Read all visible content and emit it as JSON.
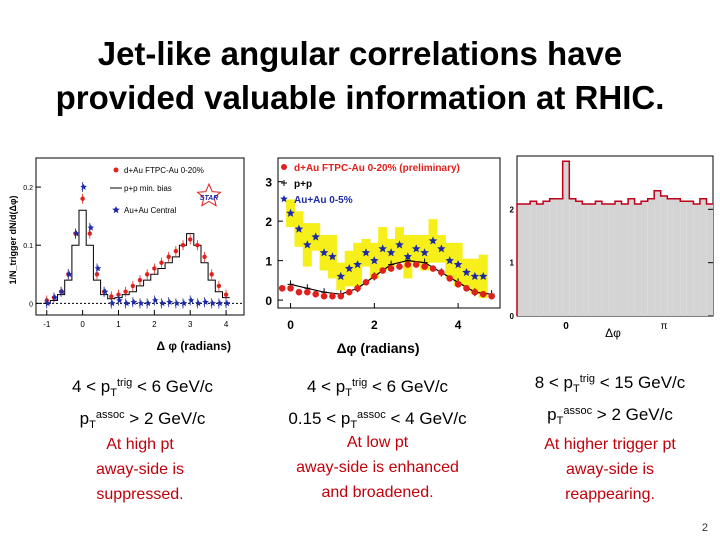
{
  "slide": {
    "title_line1": "Jet-like angular correlations have",
    "title_line2": "provided valuable information at RHIC.",
    "page_number": "2"
  },
  "colors": {
    "red": "#e0201c",
    "blue": "#1c2aa8",
    "yellow": "#f7ef1a",
    "note_red": "#c0000a",
    "gray_fill": "#d4d4d4"
  },
  "captions": [
    {
      "p1": "4 < p",
      "sub1": "T",
      "sup1": "trig",
      "p1b": " < 6 GeV/c",
      "p2": "p",
      "sub2": "T",
      "sup2": "assoc",
      "p2b": " > 2 GeV/c",
      "note1": "At high pt",
      "note2": "away-side is",
      "note3": "suppressed."
    },
    {
      "p1": "4 < p",
      "sub1": "T",
      "sup1": "trig",
      "p1b": " < 6 GeV/c",
      "p2": "0.15 < p",
      "sub2": "T",
      "sup2": "assoc",
      "p2b": " < 4 GeV/c",
      "note1": "At low pt",
      "note2": "away-side is enhanced",
      "note3": "and broadened."
    },
    {
      "p1": "8 < p",
      "sub1": "T",
      "sup1": "trig",
      "p1b": " < 15 GeV/c",
      "p2": "p",
      "sub2": "T",
      "sup2": "assoc",
      "p2b": " > 2 GeV/c",
      "note1": "At higher trigger pt",
      "note2": "away-side is",
      "note3": "reappearing."
    }
  ],
  "chart_data": [
    {
      "type": "scatter",
      "title": "",
      "xlabel": "Δ φ (radians)",
      "ylabel": "1/N_trigger dN/d(Δφ)",
      "xlim": [
        -1.3,
        4.5
      ],
      "ylim": [
        -0.02,
        0.25
      ],
      "x_ticks": [
        "-1",
        "0",
        "1",
        "2",
        "3",
        "4"
      ],
      "y_ticks": [
        "0",
        "0.1",
        "0.2"
      ],
      "logo": "STAR",
      "legend": [
        "d+Au FTPC-Au 0-20%",
        "p+p min. bias",
        "Au+Au Central"
      ],
      "series": [
        {
          "name": "d+Au FTPC-Au 0-20%",
          "x": [
            -1.0,
            -0.8,
            -0.6,
            -0.4,
            -0.2,
            0.0,
            0.2,
            0.4,
            0.6,
            0.8,
            1.0,
            1.2,
            1.4,
            1.6,
            1.8,
            2.0,
            2.2,
            2.4,
            2.6,
            2.8,
            3.0,
            3.2,
            3.4,
            3.6,
            3.8,
            4.0
          ],
          "y": [
            0.005,
            0.01,
            0.02,
            0.05,
            0.12,
            0.18,
            0.12,
            0.05,
            0.02,
            0.012,
            0.015,
            0.02,
            0.03,
            0.04,
            0.05,
            0.06,
            0.07,
            0.08,
            0.09,
            0.1,
            0.11,
            0.1,
            0.08,
            0.05,
            0.03,
            0.015
          ]
        },
        {
          "name": "p+p min. bias",
          "x": [
            -1.0,
            -0.8,
            -0.6,
            -0.4,
            -0.2,
            0.0,
            0.2,
            0.4,
            0.6,
            0.8,
            1.0,
            1.2,
            1.4,
            1.6,
            1.8,
            2.0,
            2.2,
            2.4,
            2.6,
            2.8,
            3.0,
            3.2,
            3.4,
            3.6,
            3.8,
            4.0
          ],
          "y": [
            0.0,
            0.005,
            0.015,
            0.04,
            0.1,
            0.16,
            0.1,
            0.04,
            0.015,
            0.008,
            0.01,
            0.015,
            0.02,
            0.03,
            0.04,
            0.05,
            0.06,
            0.07,
            0.08,
            0.1,
            0.12,
            0.1,
            0.07,
            0.04,
            0.02,
            0.01
          ]
        },
        {
          "name": "Au+Au Central",
          "x": [
            -1.0,
            -0.8,
            -0.6,
            -0.4,
            -0.2,
            0.0,
            0.2,
            0.4,
            0.6,
            0.8,
            1.0,
            1.2,
            1.4,
            1.6,
            1.8,
            2.0,
            2.2,
            2.4,
            2.6,
            2.8,
            3.0,
            3.2,
            3.4,
            3.6,
            3.8,
            4.0
          ],
          "y": [
            0.0,
            0.01,
            0.02,
            0.05,
            0.12,
            0.2,
            0.13,
            0.06,
            0.02,
            0.0,
            0.005,
            0.0,
            0.002,
            0.0,
            0.0,
            0.005,
            0.0,
            0.002,
            0.0,
            0.0,
            0.005,
            0.0,
            0.002,
            0.0,
            0.0,
            0.0
          ]
        }
      ]
    },
    {
      "type": "scatter",
      "title": "",
      "xlabel": "Δφ (radians)",
      "ylabel": "",
      "xlim": [
        -0.3,
        5.0
      ],
      "ylim": [
        -0.2,
        3.6
      ],
      "x_ticks": [
        "0",
        "2",
        "4"
      ],
      "y_ticks": [
        "0",
        "1",
        "2",
        "3"
      ],
      "legend": [
        "d+Au FTPC-Au 0-20% (preliminary)",
        "p+p",
        "Au+Au 0-5%"
      ],
      "series": [
        {
          "name": "d+Au FTPC-Au 0-20% (preliminary)",
          "x": [
            -0.2,
            0.0,
            0.2,
            0.4,
            0.6,
            0.8,
            1.0,
            1.2,
            1.4,
            1.6,
            1.8,
            2.0,
            2.2,
            2.4,
            2.6,
            2.8,
            3.0,
            3.2,
            3.4,
            3.6,
            3.8,
            4.0,
            4.2,
            4.4,
            4.6,
            4.8
          ],
          "y": [
            0.3,
            0.3,
            0.2,
            0.2,
            0.15,
            0.1,
            0.1,
            0.1,
            0.2,
            0.3,
            0.45,
            0.6,
            0.75,
            0.8,
            0.85,
            0.9,
            0.9,
            0.85,
            0.8,
            0.7,
            0.55,
            0.4,
            0.3,
            0.2,
            0.15,
            0.1
          ]
        },
        {
          "name": "p+p",
          "x": [
            0.0,
            0.4,
            0.8,
            1.2,
            1.6,
            2.0,
            2.4,
            2.8,
            3.2,
            3.6,
            4.0,
            4.4,
            4.8
          ],
          "y": [
            0.4,
            0.3,
            0.2,
            0.15,
            0.3,
            0.6,
            0.9,
            1.0,
            0.95,
            0.7,
            0.45,
            0.2,
            0.15
          ]
        },
        {
          "name": "Au+Au 0-5%",
          "x": [
            0.0,
            0.2,
            0.4,
            0.6,
            0.8,
            1.0,
            1.2,
            1.4,
            1.6,
            1.8,
            2.0,
            2.2,
            2.4,
            2.6,
            2.8,
            3.0,
            3.2,
            3.4,
            3.6,
            3.8,
            4.0,
            4.2,
            4.4,
            4.6
          ],
          "y": [
            2.2,
            1.8,
            1.4,
            1.6,
            1.2,
            1.1,
            0.6,
            0.8,
            0.9,
            1.2,
            1.0,
            1.3,
            1.2,
            1.4,
            1.1,
            1.3,
            1.2,
            1.5,
            1.3,
            1.0,
            0.9,
            0.7,
            0.6,
            0.6
          ]
        }
      ]
    },
    {
      "type": "bar",
      "title": "",
      "xlabel": "Δφ",
      "ylabel": "",
      "xlim": [
        -1.57,
        4.71
      ],
      "ylim": [
        0,
        3.0
      ],
      "x_ticks": [
        "0",
        "π"
      ],
      "y_ticks": [
        "0",
        "1",
        "2"
      ],
      "x": [
        -1.4,
        -1.2,
        -1.0,
        -0.8,
        -0.6,
        -0.4,
        -0.2,
        0.0,
        0.2,
        0.4,
        0.6,
        0.8,
        1.0,
        1.2,
        1.4,
        1.6,
        1.8,
        2.0,
        2.2,
        2.4,
        2.6,
        2.8,
        3.0,
        3.2,
        3.4,
        3.6,
        3.8,
        4.0,
        4.2,
        4.4
      ],
      "values": [
        2.1,
        2.1,
        2.15,
        2.1,
        2.15,
        2.2,
        2.2,
        2.9,
        2.2,
        2.15,
        2.1,
        2.1,
        2.15,
        2.1,
        2.1,
        2.15,
        2.1,
        2.2,
        2.1,
        2.15,
        2.2,
        2.35,
        2.25,
        2.2,
        2.2,
        2.15,
        2.15,
        2.1,
        2.2,
        2.1
      ]
    }
  ]
}
